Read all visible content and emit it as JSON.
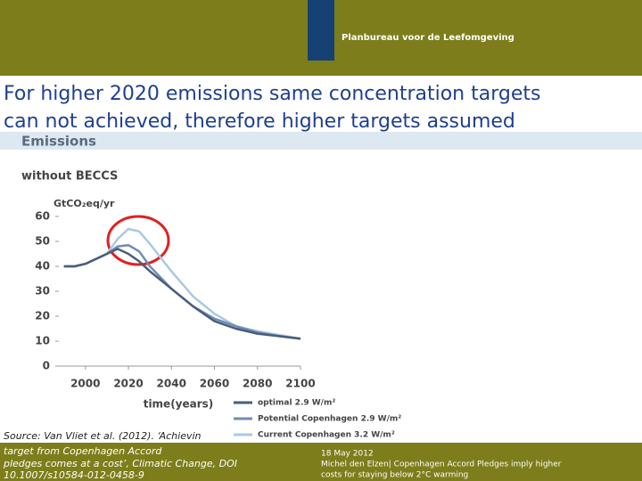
{
  "header": {
    "org": "Planbureau voor de Leefomgeving"
  },
  "slide": {
    "title_lines": [
      "For higher 2020 emissions same concentration targets",
      "can not achieved, therefore higher targets assumed"
    ],
    "section": "Emissions",
    "source_lines": [
      "Source: Van Vliet et al. (2012). ‘Achievin",
      "target from Copenhagen Accord",
      "pledges comes at a cost’, Climatic Change, DOI",
      "10.1007/s10584-012-0458-9"
    ]
  },
  "footer": {
    "date": "18 May 2012",
    "text_lines": [
      "Michel den Elzen| Copenhagen Accord Pledges imply higher",
      "costs for staying below 2°C warming"
    ]
  },
  "chart_data": {
    "type": "line",
    "title": "without BECCS",
    "y_label": "GtCO₂eq/yr",
    "x_label": "time(years)",
    "x": [
      1990,
      1995,
      2000,
      2005,
      2010,
      2015,
      2020,
      2025,
      2030,
      2040,
      2050,
      2060,
      2070,
      2080,
      2090,
      2100
    ],
    "series": [
      {
        "name": "optimal 2.9 W/m²",
        "color": "#4a5d7c",
        "values": [
          40,
          40,
          41,
          43,
          45,
          47,
          45,
          42,
          38,
          31,
          24,
          18,
          15,
          13,
          12,
          11
        ]
      },
      {
        "name": "Potential Copenhagen 2.9 W/m²",
        "color": "#6f8db3",
        "values": [
          40,
          40,
          41,
          43,
          45,
          48,
          48.5,
          46,
          40,
          31,
          24,
          19,
          16,
          13.5,
          12,
          11
        ]
      },
      {
        "name": "Current Copenhagen 3.2 W/m²",
        "color": "#a9c9e2",
        "values": [
          40,
          40,
          41,
          43,
          45,
          51,
          55,
          54,
          49,
          38,
          28,
          21,
          16,
          14,
          12.5,
          11
        ]
      }
    ],
    "xlim": [
      1986,
      2100
    ],
    "ylim": [
      0,
      60
    ],
    "xticks": [
      2000,
      2020,
      2040,
      2060,
      2080,
      2100
    ],
    "yticks": [
      0,
      10,
      20,
      30,
      40,
      50,
      60
    ]
  }
}
